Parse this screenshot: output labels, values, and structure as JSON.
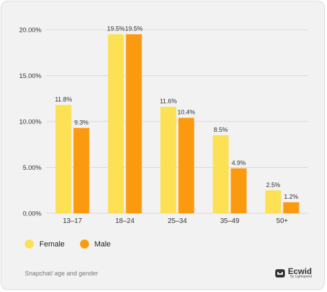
{
  "chart_data": {
    "type": "bar",
    "categories": [
      "13–17",
      "18–24",
      "25–34",
      "35–49",
      "50+"
    ],
    "series": [
      {
        "name": "Female",
        "values": [
          11.8,
          19.5,
          11.6,
          8.5,
          2.5
        ],
        "labels": [
          "11.8%",
          "19.5%",
          "11.6%",
          "8.5%",
          "2.5%"
        ],
        "color": "#FCE154"
      },
      {
        "name": "Male",
        "values": [
          9.3,
          19.5,
          10.4,
          4.9,
          1.2
        ],
        "labels": [
          "9.3%",
          "19.5%",
          "10.4%",
          "4.9%",
          "1.2%"
        ],
        "color": "#FB9A0E"
      }
    ],
    "ylim": [
      0,
      20
    ],
    "yticks": [
      0,
      5,
      10,
      15,
      20
    ],
    "ytick_labels": [
      "0.00%",
      "5.00%",
      "10.00%",
      "15.00%",
      "20.00%"
    ],
    "grid": true,
    "legend_placement": "bottom-left"
  },
  "footer": {
    "note": "Snapchat/ age and gender",
    "brand_name": "Ecwid",
    "brand_sub": "by Lightspeed"
  },
  "colors": {
    "grid": "#d9d9d9",
    "axis_text": "#333333"
  }
}
